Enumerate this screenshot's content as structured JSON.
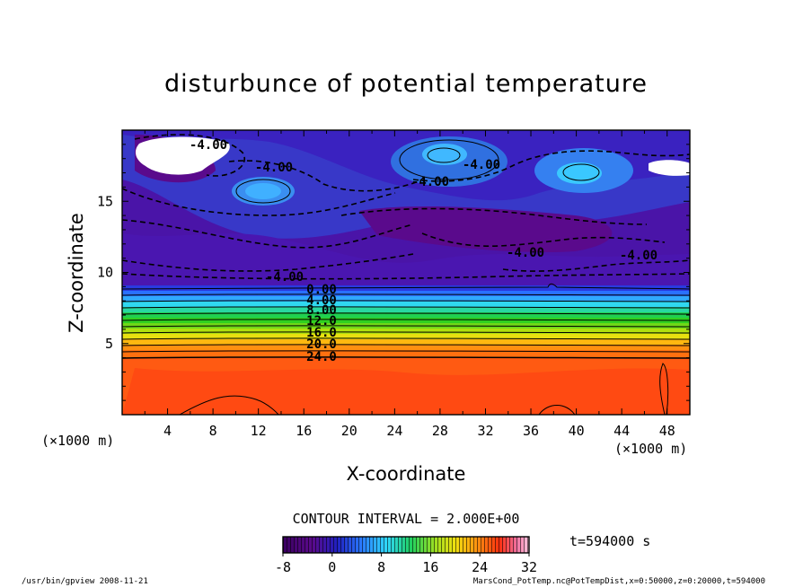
{
  "chart_data": {
    "type": "heatmap",
    "title": "disturbunce of potential temperature",
    "xlabel": "X-coordinate",
    "ylabel": "Z-coordinate",
    "x_unit": "(×1000 m)",
    "y_unit": "(×1000 m)",
    "xlim": [
      0,
      50
    ],
    "ylim": [
      0,
      20
    ],
    "xticks": [
      4,
      8,
      12,
      16,
      20,
      24,
      28,
      32,
      36,
      40,
      44,
      48
    ],
    "yticks": [
      5,
      10,
      15
    ],
    "contour_interval_text": "CONTOUR INTERVAL = 2.000E+00",
    "contour_labels": [
      "-4.00",
      "-4.00",
      "-4.00",
      "-4.00",
      "-4.00",
      "-4.00",
      "-4.00",
      "0.00",
      "4.00",
      "8.00",
      "12.0",
      "16.0",
      "20.0",
      "24.0"
    ],
    "colorbar": {
      "min": -8,
      "max": 32,
      "ticks": [
        "-8",
        "0",
        "8",
        "16",
        "24",
        "32"
      ]
    },
    "time_label": "t=594000 s",
    "footer_left": "/usr/bin/gpview   2008-11-21",
    "footer_right": "MarsCond_PotTemp.nc@PotTempDist,x=0:50000,z=0:20000,t=594000"
  },
  "colors": {
    "deep_purple": "#5a0a8c",
    "blue": "#2233cc",
    "light_blue": "#39a0ff",
    "green": "#25d040",
    "yellow": "#e8e010",
    "orange": "#ff6a10",
    "red_orange": "#ff4a12",
    "pink": "#f0b0d0"
  }
}
